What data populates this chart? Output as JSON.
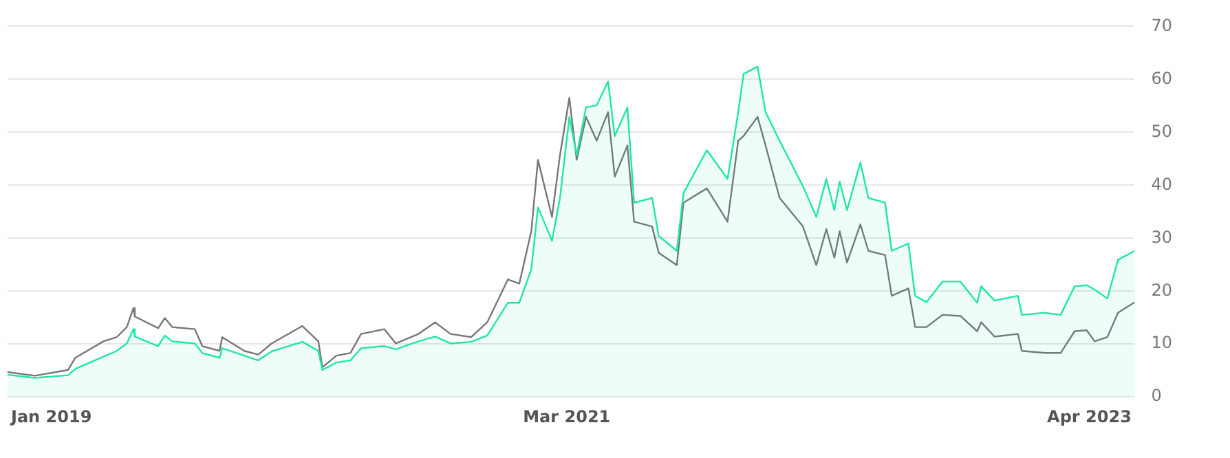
{
  "chart_data": {
    "type": "line",
    "x": [
      "2018-11-15",
      "2018-12-26",
      "2019-02-14",
      "2019-02-25",
      "2019-04-08",
      "2019-04-28",
      "2019-05-13",
      "2019-05-23",
      "2019-05-25",
      "2019-06-29",
      "2019-07-09",
      "2019-07-20",
      "2019-08-23",
      "2019-09-03",
      "2019-09-29",
      "2019-10-03",
      "2019-11-05",
      "2019-11-26",
      "2019-12-16",
      "2020-01-31",
      "2020-02-24",
      "2020-03-01",
      "2020-03-22",
      "2020-04-12",
      "2020-04-28",
      "2020-06-02",
      "2020-06-19",
      "2020-07-23",
      "2020-08-17",
      "2020-09-09",
      "2020-10-10",
      "2020-11-03",
      "2020-12-04",
      "2020-12-21",
      "2021-01-08",
      "2021-01-18",
      "2021-02-08",
      "2021-02-20",
      "2021-03-06",
      "2021-03-17",
      "2021-03-31",
      "2021-04-16",
      "2021-05-03",
      "2021-05-13",
      "2021-06-01",
      "2021-06-11",
      "2021-07-08",
      "2021-07-18",
      "2021-08-14",
      "2021-08-24",
      "2021-09-28",
      "2021-10-29",
      "2021-11-14",
      "2021-11-22",
      "2021-12-13",
      "2021-12-25",
      "2022-01-15",
      "2022-02-19",
      "2022-03-11",
      "2022-03-26",
      "2022-04-07",
      "2022-04-15",
      "2022-04-26",
      "2022-05-16",
      "2022-05-28",
      "2022-06-22",
      "2022-07-02",
      "2022-07-27",
      "2022-08-06",
      "2022-08-23",
      "2022-09-16",
      "2022-10-13",
      "2022-11-07",
      "2022-11-13",
      "2022-12-03",
      "2023-01-07",
      "2023-01-13",
      "2023-02-17",
      "2023-03-12",
      "2023-04-02",
      "2023-04-20",
      "2023-05-02",
      "2023-05-21",
      "2023-06-06",
      "2023-07-01"
    ],
    "series": [
      {
        "type": "line",
        "color": "#777777",
        "values": [
          4.7,
          4.0,
          5.1,
          7.4,
          10.5,
          11.3,
          13.2,
          16.8,
          15.2,
          13.0,
          14.9,
          13.2,
          12.8,
          9.6,
          8.7,
          11.3,
          8.7,
          8.0,
          10.1,
          13.4,
          10.5,
          5.6,
          7.8,
          8.3,
          11.9,
          12.8,
          10.1,
          11.9,
          14.1,
          11.9,
          11.3,
          14.1,
          22.2,
          21.4,
          31.3,
          44.8,
          34.0,
          45.7,
          56.5,
          44.8,
          52.9,
          48.4,
          53.8,
          41.6,
          47.5,
          33.1,
          32.2,
          27.2,
          24.9,
          36.7,
          39.4,
          33.1,
          48.4,
          49.3,
          52.9,
          47.5,
          37.6,
          32.2,
          24.9,
          31.7,
          26.3,
          31.3,
          25.4,
          32.6,
          27.6,
          26.8,
          19.1,
          20.5,
          13.2,
          13.2,
          15.5,
          15.3,
          12.4,
          14.1,
          11.4,
          11.9,
          8.7,
          8.3,
          8.3,
          12.4,
          12.6,
          10.5,
          11.3,
          15.9,
          17.9
        ]
      },
      {
        "type": "area",
        "color": "#1de9a0",
        "values": [
          4.2,
          3.6,
          4.1,
          5.3,
          7.6,
          8.7,
          10.1,
          12.8,
          11.4,
          9.6,
          11.6,
          10.5,
          10.1,
          8.3,
          7.4,
          9.2,
          7.8,
          6.9,
          8.6,
          10.4,
          8.7,
          5.1,
          6.5,
          6.9,
          9.2,
          9.6,
          9.0,
          10.5,
          11.4,
          10.1,
          10.4,
          11.6,
          17.8,
          17.8,
          24.1,
          35.8,
          29.5,
          37.6,
          52.9,
          45.7,
          54.7,
          55.1,
          59.6,
          49.3,
          54.7,
          36.7,
          37.6,
          30.4,
          27.6,
          38.5,
          46.6,
          41.2,
          53.8,
          61.0,
          62.4,
          53.8,
          48.4,
          39.8,
          34.0,
          41.2,
          35.3,
          40.7,
          35.3,
          44.3,
          37.6,
          36.7,
          27.6,
          29.0,
          19.1,
          17.9,
          21.8,
          21.8,
          17.8,
          20.9,
          18.2,
          19.1,
          15.5,
          15.9,
          15.5,
          20.9,
          21.1,
          20.3,
          18.6,
          25.9,
          27.6
        ]
      }
    ],
    "xlim": [
      "2018-11-15",
      "2023-07-01"
    ],
    "xticks": [
      {
        "value": "2019-01-20",
        "label": "Jan 2019"
      },
      {
        "value": "2021-03-02",
        "label": "Mar 2021"
      },
      {
        "value": "2023-04-24",
        "label": "Apr 2023"
      }
    ],
    "ylim": [
      0,
      70
    ],
    "yticks": [
      0,
      10,
      20,
      30,
      40,
      50,
      60,
      70
    ],
    "grid": "y",
    "legend": false,
    "marker": "none",
    "line_style": "solid"
  }
}
